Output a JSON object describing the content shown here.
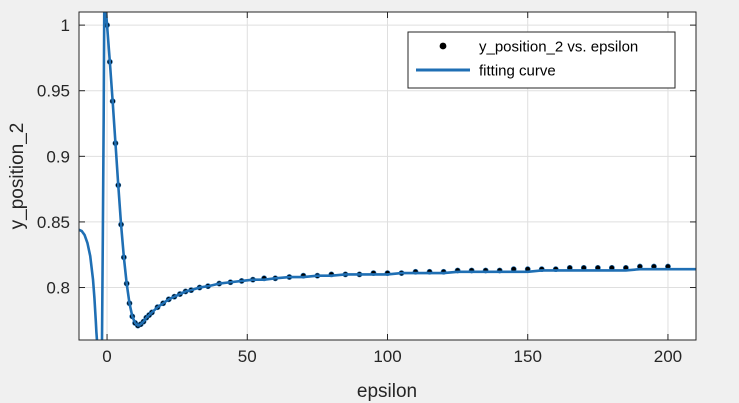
{
  "chart_data": {
    "type": "scatter",
    "title": "",
    "xlabel": "epsilon",
    "ylabel": "y_position_2",
    "xlim": [
      -10,
      210
    ],
    "ylim": [
      0.76,
      1.01
    ],
    "xticks": [
      0,
      50,
      100,
      150,
      200
    ],
    "xtick_labels": [
      "0",
      "50",
      "100",
      "150",
      "200"
    ],
    "yticks": [
      0.8,
      0.85,
      0.9,
      0.95,
      1.0
    ],
    "ytick_labels": [
      "0.8",
      "0.85",
      "0.9",
      "0.95",
      "1"
    ],
    "grid": true,
    "legend_position": "top-right",
    "series": [
      {
        "name": "y_position_2 vs. epsilon",
        "kind": "markers",
        "color": "#000000",
        "x": [
          0,
          1,
          2,
          3,
          4,
          5,
          6,
          7,
          8,
          9,
          10,
          11,
          12,
          13,
          14,
          15,
          16,
          18,
          20,
          22,
          24,
          26,
          28,
          30,
          33,
          36,
          40,
          44,
          48,
          52,
          56,
          60,
          65,
          70,
          75,
          80,
          85,
          90,
          95,
          100,
          105,
          110,
          115,
          120,
          125,
          130,
          135,
          140,
          145,
          150,
          155,
          160,
          165,
          170,
          175,
          180,
          185,
          190,
          195,
          200
        ],
        "y": [
          1.0,
          0.972,
          0.942,
          0.91,
          0.878,
          0.848,
          0.823,
          0.803,
          0.788,
          0.778,
          0.773,
          0.771,
          0.772,
          0.774,
          0.777,
          0.779,
          0.781,
          0.785,
          0.788,
          0.791,
          0.793,
          0.795,
          0.797,
          0.798,
          0.8,
          0.801,
          0.803,
          0.804,
          0.805,
          0.806,
          0.807,
          0.807,
          0.808,
          0.809,
          0.809,
          0.81,
          0.81,
          0.81,
          0.811,
          0.811,
          0.811,
          0.812,
          0.812,
          0.812,
          0.813,
          0.813,
          0.813,
          0.813,
          0.814,
          0.814,
          0.814,
          0.814,
          0.815,
          0.815,
          0.815,
          0.815,
          0.815,
          0.816,
          0.816,
          0.816
        ]
      },
      {
        "name": "fitting curve",
        "kind": "line",
        "color": "#1f6fb4",
        "segments": [
          {
            "x": [
              -10,
              -9,
              -8,
              -7,
              -6,
              -5,
              -4.5,
              -4,
              -3.8,
              -3.6
            ],
            "y": [
              0.844,
              0.843,
              0.84,
              0.834,
              0.824,
              0.806,
              0.792,
              0.774,
              0.766,
              0.76
            ]
          },
          {
            "x": [
              -1.8,
              -1.5,
              -1.2,
              -1.0
            ],
            "y": [
              0.76,
              0.84,
              0.93,
              1.01
            ]
          },
          {
            "x": [
              -0.35,
              0,
              1,
              2,
              3,
              4,
              5,
              6,
              7,
              8,
              9,
              10,
              11,
              12,
              13,
              14,
              15,
              16,
              18,
              20,
              22,
              24,
              26,
              28,
              30,
              33,
              36,
              40,
              44,
              48,
              52,
              56,
              60,
              65,
              70,
              75,
              80,
              85,
              90,
              95,
              100,
              105,
              110,
              115,
              120,
              125,
              130,
              135,
              140,
              145,
              150,
              155,
              160,
              165,
              170,
              175,
              180,
              185,
              190,
              195,
              200,
              205,
              210
            ],
            "y": [
              1.01,
              1.0,
              0.972,
              0.942,
              0.91,
              0.878,
              0.848,
              0.823,
              0.803,
              0.788,
              0.778,
              0.773,
              0.771,
              0.772,
              0.774,
              0.777,
              0.779,
              0.781,
              0.785,
              0.788,
              0.791,
              0.793,
              0.795,
              0.797,
              0.798,
              0.8,
              0.801,
              0.803,
              0.804,
              0.805,
              0.806,
              0.806,
              0.807,
              0.808,
              0.808,
              0.809,
              0.809,
              0.81,
              0.81,
              0.81,
              0.81,
              0.811,
              0.811,
              0.811,
              0.811,
              0.812,
              0.812,
              0.812,
              0.812,
              0.812,
              0.812,
              0.813,
              0.813,
              0.813,
              0.813,
              0.813,
              0.813,
              0.813,
              0.814,
              0.814,
              0.814,
              0.814,
              0.814
            ]
          }
        ]
      }
    ]
  }
}
